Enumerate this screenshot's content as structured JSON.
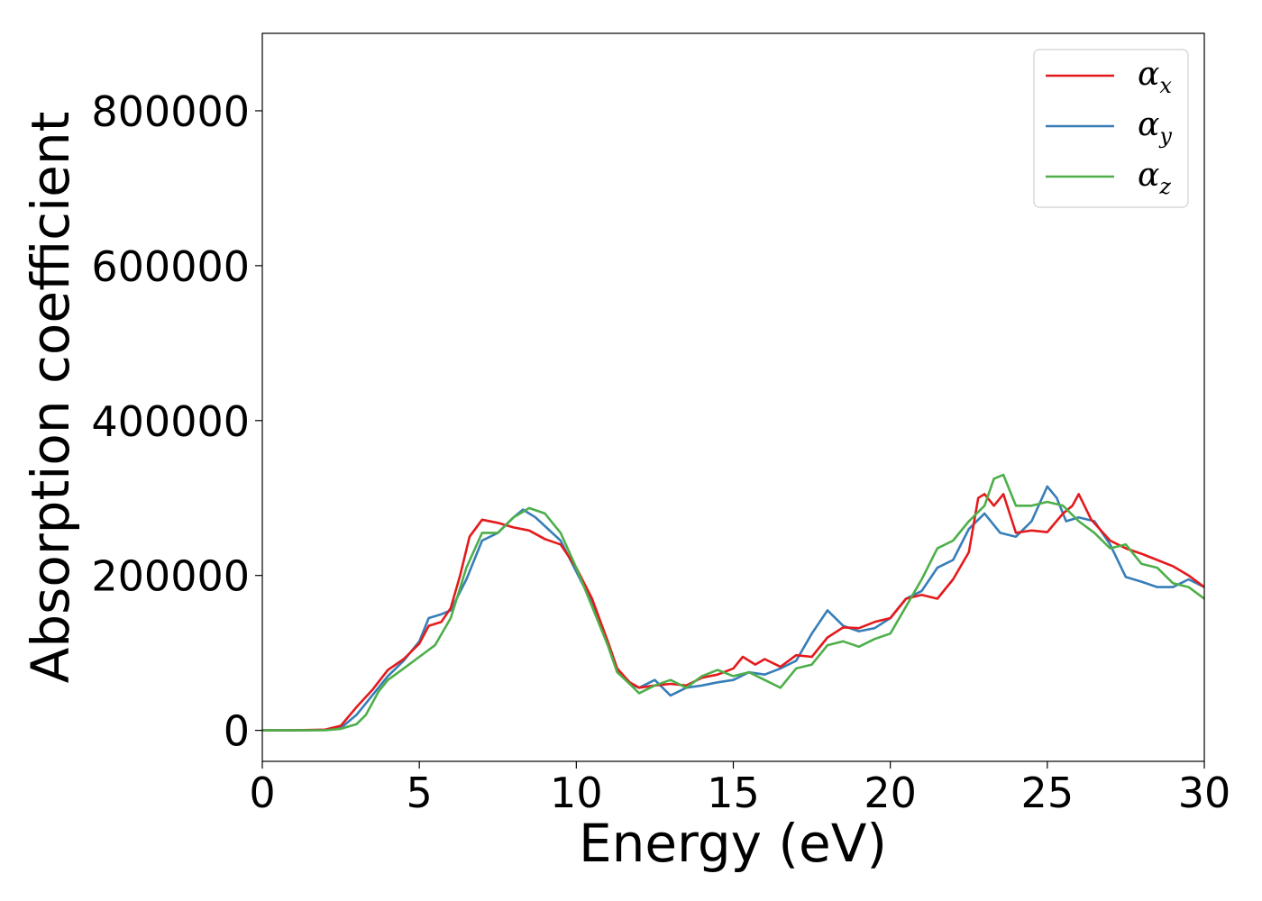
{
  "chart_data": {
    "type": "line",
    "xlabel": "Energy (eV)",
    "ylabel": "Absorption coefficient",
    "xlim": [
      0,
      30
    ],
    "ylim": [
      -40000,
      900000
    ],
    "xticks": [
      0,
      5,
      10,
      15,
      20,
      25,
      30
    ],
    "yticks": [
      0,
      200000,
      400000,
      600000,
      800000
    ],
    "grid": false,
    "legend_position": "top-right",
    "series": [
      {
        "name": "α_x",
        "name_main": "α",
        "name_sub": "x",
        "color": "#e41a1c",
        "points": [
          [
            0,
            0
          ],
          [
            1,
            0
          ],
          [
            2,
            1000
          ],
          [
            2.5,
            6000
          ],
          [
            3,
            30000
          ],
          [
            3.5,
            52000
          ],
          [
            4,
            78000
          ],
          [
            4.5,
            92000
          ],
          [
            5,
            112000
          ],
          [
            5.3,
            135000
          ],
          [
            5.7,
            140000
          ],
          [
            6,
            158000
          ],
          [
            6.3,
            200000
          ],
          [
            6.6,
            250000
          ],
          [
            7,
            272000
          ],
          [
            7.5,
            268000
          ],
          [
            8,
            262000
          ],
          [
            8.5,
            258000
          ],
          [
            9,
            247000
          ],
          [
            9.5,
            240000
          ],
          [
            10,
            210000
          ],
          [
            10.5,
            170000
          ],
          [
            11,
            115000
          ],
          [
            11.3,
            80000
          ],
          [
            11.7,
            62000
          ],
          [
            12,
            55000
          ],
          [
            12.5,
            58000
          ],
          [
            13,
            60000
          ],
          [
            13.5,
            58000
          ],
          [
            14,
            68000
          ],
          [
            14.5,
            72000
          ],
          [
            15,
            80000
          ],
          [
            15.3,
            95000
          ],
          [
            15.7,
            85000
          ],
          [
            16,
            92000
          ],
          [
            16.5,
            82000
          ],
          [
            17,
            97000
          ],
          [
            17.5,
            95000
          ],
          [
            18,
            120000
          ],
          [
            18.5,
            133000
          ],
          [
            19,
            132000
          ],
          [
            19.5,
            140000
          ],
          [
            20,
            145000
          ],
          [
            20.5,
            170000
          ],
          [
            21,
            175000
          ],
          [
            21.5,
            170000
          ],
          [
            22,
            195000
          ],
          [
            22.5,
            230000
          ],
          [
            22.8,
            300000
          ],
          [
            23,
            305000
          ],
          [
            23.3,
            290000
          ],
          [
            23.6,
            305000
          ],
          [
            24,
            255000
          ],
          [
            24.5,
            258000
          ],
          [
            25,
            256000
          ],
          [
            25.5,
            280000
          ],
          [
            25.8,
            290000
          ],
          [
            26,
            305000
          ],
          [
            26.4,
            272000
          ],
          [
            27,
            245000
          ],
          [
            27.5,
            235000
          ],
          [
            28,
            228000
          ],
          [
            28.5,
            220000
          ],
          [
            29,
            212000
          ],
          [
            29.5,
            200000
          ],
          [
            30,
            185000
          ]
        ]
      },
      {
        "name": "α_y",
        "name_main": "α",
        "name_sub": "y",
        "color": "#377eb8",
        "points": [
          [
            0,
            0
          ],
          [
            1,
            0
          ],
          [
            2,
            500
          ],
          [
            2.5,
            3000
          ],
          [
            3,
            20000
          ],
          [
            3.5,
            45000
          ],
          [
            4,
            70000
          ],
          [
            4.5,
            90000
          ],
          [
            5,
            115000
          ],
          [
            5.3,
            145000
          ],
          [
            5.7,
            150000
          ],
          [
            6,
            155000
          ],
          [
            6.5,
            195000
          ],
          [
            7,
            245000
          ],
          [
            7.5,
            255000
          ],
          [
            8,
            275000
          ],
          [
            8.3,
            285000
          ],
          [
            8.7,
            275000
          ],
          [
            9.5,
            245000
          ],
          [
            10,
            205000
          ],
          [
            10.5,
            165000
          ],
          [
            11,
            115000
          ],
          [
            11.3,
            80000
          ],
          [
            11.7,
            60000
          ],
          [
            12,
            55000
          ],
          [
            12.5,
            65000
          ],
          [
            13,
            45000
          ],
          [
            13.5,
            55000
          ],
          [
            14,
            58000
          ],
          [
            14.5,
            62000
          ],
          [
            15,
            65000
          ],
          [
            15.5,
            75000
          ],
          [
            16,
            72000
          ],
          [
            16.5,
            80000
          ],
          [
            17,
            90000
          ],
          [
            17.5,
            125000
          ],
          [
            18,
            155000
          ],
          [
            18.5,
            135000
          ],
          [
            19,
            128000
          ],
          [
            19.5,
            132000
          ],
          [
            20,
            145000
          ],
          [
            20.5,
            170000
          ],
          [
            21,
            180000
          ],
          [
            21.5,
            210000
          ],
          [
            22,
            220000
          ],
          [
            22.5,
            260000
          ],
          [
            23,
            280000
          ],
          [
            23.5,
            255000
          ],
          [
            24,
            250000
          ],
          [
            24.5,
            270000
          ],
          [
            25,
            315000
          ],
          [
            25.3,
            300000
          ],
          [
            25.6,
            270000
          ],
          [
            26,
            275000
          ],
          [
            26.5,
            270000
          ],
          [
            27,
            240000
          ],
          [
            27.5,
            198000
          ],
          [
            28,
            192000
          ],
          [
            28.5,
            185000
          ],
          [
            29,
            185000
          ],
          [
            29.5,
            195000
          ],
          [
            30,
            185000
          ]
        ]
      },
      {
        "name": "α_z",
        "name_main": "α",
        "name_sub": "z",
        "color": "#4daf4a",
        "points": [
          [
            0,
            0
          ],
          [
            1,
            0
          ],
          [
            2,
            300
          ],
          [
            2.5,
            2000
          ],
          [
            3,
            8000
          ],
          [
            3.3,
            20000
          ],
          [
            3.7,
            50000
          ],
          [
            4,
            65000
          ],
          [
            4.5,
            80000
          ],
          [
            5,
            95000
          ],
          [
            5.5,
            110000
          ],
          [
            6,
            145000
          ],
          [
            6.5,
            210000
          ],
          [
            7,
            255000
          ],
          [
            7.5,
            255000
          ],
          [
            8,
            275000
          ],
          [
            8.5,
            287000
          ],
          [
            9,
            280000
          ],
          [
            9.5,
            255000
          ],
          [
            10,
            210000
          ],
          [
            10.5,
            160000
          ],
          [
            11,
            110000
          ],
          [
            11.3,
            75000
          ],
          [
            11.7,
            60000
          ],
          [
            12,
            48000
          ],
          [
            12.5,
            58000
          ],
          [
            13,
            65000
          ],
          [
            13.5,
            55000
          ],
          [
            14,
            70000
          ],
          [
            14.5,
            78000
          ],
          [
            15,
            70000
          ],
          [
            15.5,
            75000
          ],
          [
            16,
            65000
          ],
          [
            16.5,
            55000
          ],
          [
            17,
            80000
          ],
          [
            17.5,
            85000
          ],
          [
            18,
            110000
          ],
          [
            18.5,
            115000
          ],
          [
            19,
            108000
          ],
          [
            19.5,
            118000
          ],
          [
            20,
            125000
          ],
          [
            20.5,
            160000
          ],
          [
            21,
            195000
          ],
          [
            21.5,
            235000
          ],
          [
            22,
            245000
          ],
          [
            22.5,
            270000
          ],
          [
            23,
            290000
          ],
          [
            23.3,
            325000
          ],
          [
            23.6,
            330000
          ],
          [
            24,
            290000
          ],
          [
            24.5,
            290000
          ],
          [
            25,
            295000
          ],
          [
            25.5,
            290000
          ],
          [
            26,
            270000
          ],
          [
            26.5,
            255000
          ],
          [
            27,
            235000
          ],
          [
            27.5,
            240000
          ],
          [
            28,
            215000
          ],
          [
            28.5,
            210000
          ],
          [
            29,
            190000
          ],
          [
            29.5,
            185000
          ],
          [
            30,
            170000
          ]
        ]
      }
    ]
  }
}
